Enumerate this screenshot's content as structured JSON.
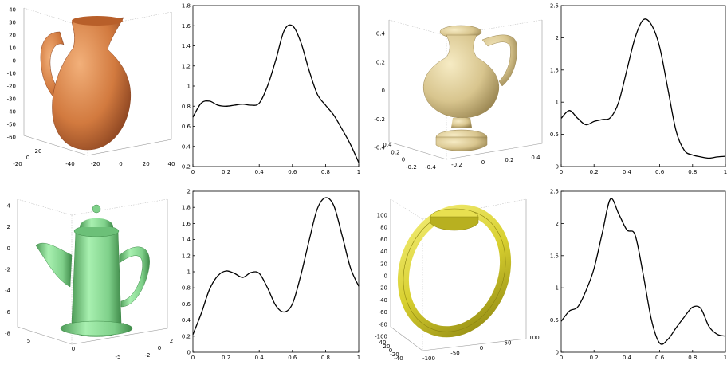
{
  "chart_data": [
    {
      "type": "line",
      "x": [
        0,
        0.05,
        0.1,
        0.15,
        0.2,
        0.25,
        0.3,
        0.35,
        0.4,
        0.45,
        0.5,
        0.55,
        0.6,
        0.65,
        0.7,
        0.75,
        0.8,
        0.85,
        0.9,
        0.95,
        1.0
      ],
      "values": [
        0.69,
        0.83,
        0.85,
        0.81,
        0.8,
        0.81,
        0.82,
        0.81,
        0.83,
        1.0,
        1.26,
        1.55,
        1.6,
        1.44,
        1.16,
        0.92,
        0.81,
        0.71,
        0.57,
        0.42,
        0.24
      ],
      "xlim": [
        0,
        1
      ],
      "ylim": [
        0.2,
        1.8
      ],
      "xticks": [
        "0",
        "0.2",
        "0.4",
        "0.6",
        "0.8",
        "1"
      ],
      "yticks": [
        "0.2",
        "0.4",
        "0.6",
        "0.8",
        "1",
        "1.2",
        "1.4",
        "1.6",
        "1.8"
      ]
    },
    {
      "type": "line",
      "x": [
        0,
        0.05,
        0.1,
        0.15,
        0.2,
        0.25,
        0.3,
        0.35,
        0.4,
        0.45,
        0.5,
        0.55,
        0.6,
        0.65,
        0.7,
        0.75,
        0.8,
        0.85,
        0.9,
        0.95,
        1.0
      ],
      "values": [
        0.75,
        0.87,
        0.75,
        0.65,
        0.7,
        0.73,
        0.76,
        1.0,
        1.5,
        2.0,
        2.28,
        2.2,
        1.85,
        1.2,
        0.55,
        0.25,
        0.18,
        0.15,
        0.13,
        0.15,
        0.16
      ],
      "xlim": [
        0,
        1
      ],
      "ylim": [
        0,
        2.5
      ],
      "xticks": [
        "0",
        "0.2",
        "0.4",
        "0.6",
        "0.8",
        "1"
      ],
      "yticks": [
        "0",
        "0.5",
        "1",
        "1.5",
        "2",
        "2.5"
      ]
    },
    {
      "type": "line",
      "x": [
        0,
        0.05,
        0.1,
        0.15,
        0.2,
        0.25,
        0.3,
        0.35,
        0.4,
        0.45,
        0.5,
        0.55,
        0.6,
        0.65,
        0.7,
        0.75,
        0.8,
        0.85,
        0.9,
        0.95,
        1.0
      ],
      "values": [
        0.22,
        0.48,
        0.78,
        0.95,
        1.01,
        0.98,
        0.93,
        0.99,
        0.98,
        0.8,
        0.58,
        0.5,
        0.6,
        0.95,
        1.38,
        1.78,
        1.92,
        1.82,
        1.45,
        1.05,
        0.82
      ],
      "xlim": [
        0,
        1
      ],
      "ylim": [
        0,
        2
      ],
      "xticks": [
        "0",
        "0.2",
        "0.4",
        "0.6",
        "0.8",
        "1"
      ],
      "yticks": [
        "0",
        "0.2",
        "0.4",
        "0.6",
        "0.8",
        "1",
        "1.2",
        "1.4",
        "1.6",
        "1.8",
        "2"
      ]
    },
    {
      "type": "line",
      "x": [
        0,
        0.05,
        0.1,
        0.15,
        0.2,
        0.25,
        0.3,
        0.35,
        0.4,
        0.45,
        0.5,
        0.55,
        0.6,
        0.65,
        0.7,
        0.75,
        0.8,
        0.85,
        0.9,
        0.95,
        1.0
      ],
      "values": [
        0.48,
        0.64,
        0.7,
        0.95,
        1.3,
        1.85,
        2.38,
        2.15,
        1.9,
        1.82,
        1.2,
        0.5,
        0.14,
        0.2,
        0.38,
        0.55,
        0.7,
        0.68,
        0.4,
        0.28,
        0.25
      ],
      "xlim": [
        0,
        1
      ],
      "ylim": [
        0,
        2.5
      ],
      "xticks": [
        "0",
        "0.2",
        "0.4",
        "0.6",
        "0.8",
        "1"
      ],
      "yticks": [
        "0",
        "0.5",
        "1",
        "1.5",
        "2",
        "2.5"
      ]
    }
  ],
  "plots3d": [
    {
      "object": "pitcher",
      "color": "#d27a3f",
      "zticks": [
        "40",
        "30",
        "20",
        "10",
        "0",
        "-10",
        "-20",
        "-30",
        "-40",
        "-50",
        "-60"
      ],
      "xticks": [
        "-40",
        "-20",
        "0",
        "20",
        "40"
      ],
      "yticks": [
        "20",
        "0",
        "-20"
      ]
    },
    {
      "object": "vase",
      "color": "#d8c58e",
      "zticks": [
        "0.4",
        "0.2",
        "0",
        "-0.2",
        "-0.4"
      ],
      "xticks": [
        "-0.4",
        "-0.2",
        "0",
        "0.2",
        "0.4"
      ],
      "yticks": [
        "0.4",
        "0.2",
        "0",
        "-0.2"
      ]
    },
    {
      "object": "teapot",
      "color": "#7fd08a",
      "zticks": [
        "4",
        "2",
        "0",
        "-2",
        "-4",
        "-6",
        "-8"
      ],
      "xticks": [
        "5",
        "0",
        "-5"
      ],
      "yticks": [
        "2",
        "0",
        "-2"
      ]
    },
    {
      "object": "ring",
      "color": "#d8d030",
      "zticks": [
        "100",
        "80",
        "60",
        "40",
        "20",
        "0",
        "-20",
        "-40",
        "-60",
        "-80",
        "-100"
      ],
      "xticks": [
        "-100",
        "-50",
        "0",
        "50",
        "100"
      ],
      "yticks": [
        "40",
        "20",
        "0",
        "-20",
        "-40"
      ]
    }
  ]
}
